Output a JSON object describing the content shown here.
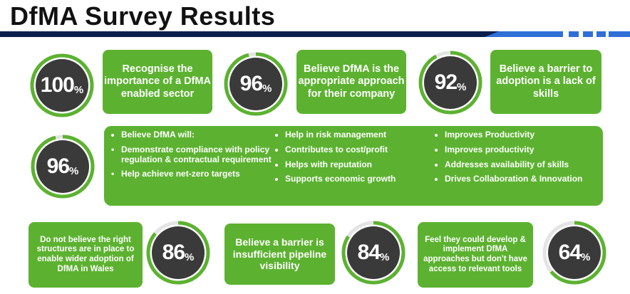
{
  "title": "DfMA Survey Results",
  "colors": {
    "green": "#5cb230",
    "dark": "#3a3a3a",
    "rule_navy": "#0b1f4d",
    "rule_blue": "#2f6fd6"
  },
  "stats": [
    {
      "number": "100",
      "unit": "%",
      "text": "Recognise the importance of a DfMA enabled sector",
      "fraction": 1.0
    },
    {
      "number": "96",
      "unit": "%",
      "text": "Believe DfMA is the appropriate approach for their company",
      "fraction": 0.96
    },
    {
      "number": "92",
      "unit": "%",
      "text": "Believe a barrier to adoption is a lack of skills",
      "fraction": 0.92
    },
    {
      "number": "96",
      "unit": "%",
      "fraction": 0.96
    },
    {
      "number": "86",
      "unit": "%",
      "text": "Do not believe the right structures are in place to enable wider adoption of DfMA in Wales",
      "fraction": 0.86
    },
    {
      "number": "84",
      "unit": "%",
      "text": "Believe a barrier is insufficient pipeline visibility",
      "fraction": 0.84
    },
    {
      "number": "64",
      "unit": "%",
      "text": "Feel they could develop & implement DfMA approaches but don't have access to relevant tools",
      "fraction": 0.64
    }
  ],
  "will": {
    "heading": "Believe DfMA will:",
    "col1": [
      "Demonstrate compliance with policy regulation & contractual requirement",
      "Help achieve net-zero targets"
    ],
    "col2": [
      "Help in risk management",
      "Contributes to cost/profit",
      "Helps with reputation",
      "Supports economic growth"
    ],
    "col3": [
      "Improves Productivity",
      "Improves productivity",
      "Addresses availability of skills",
      "Drives Collaboration & Innovation"
    ]
  }
}
